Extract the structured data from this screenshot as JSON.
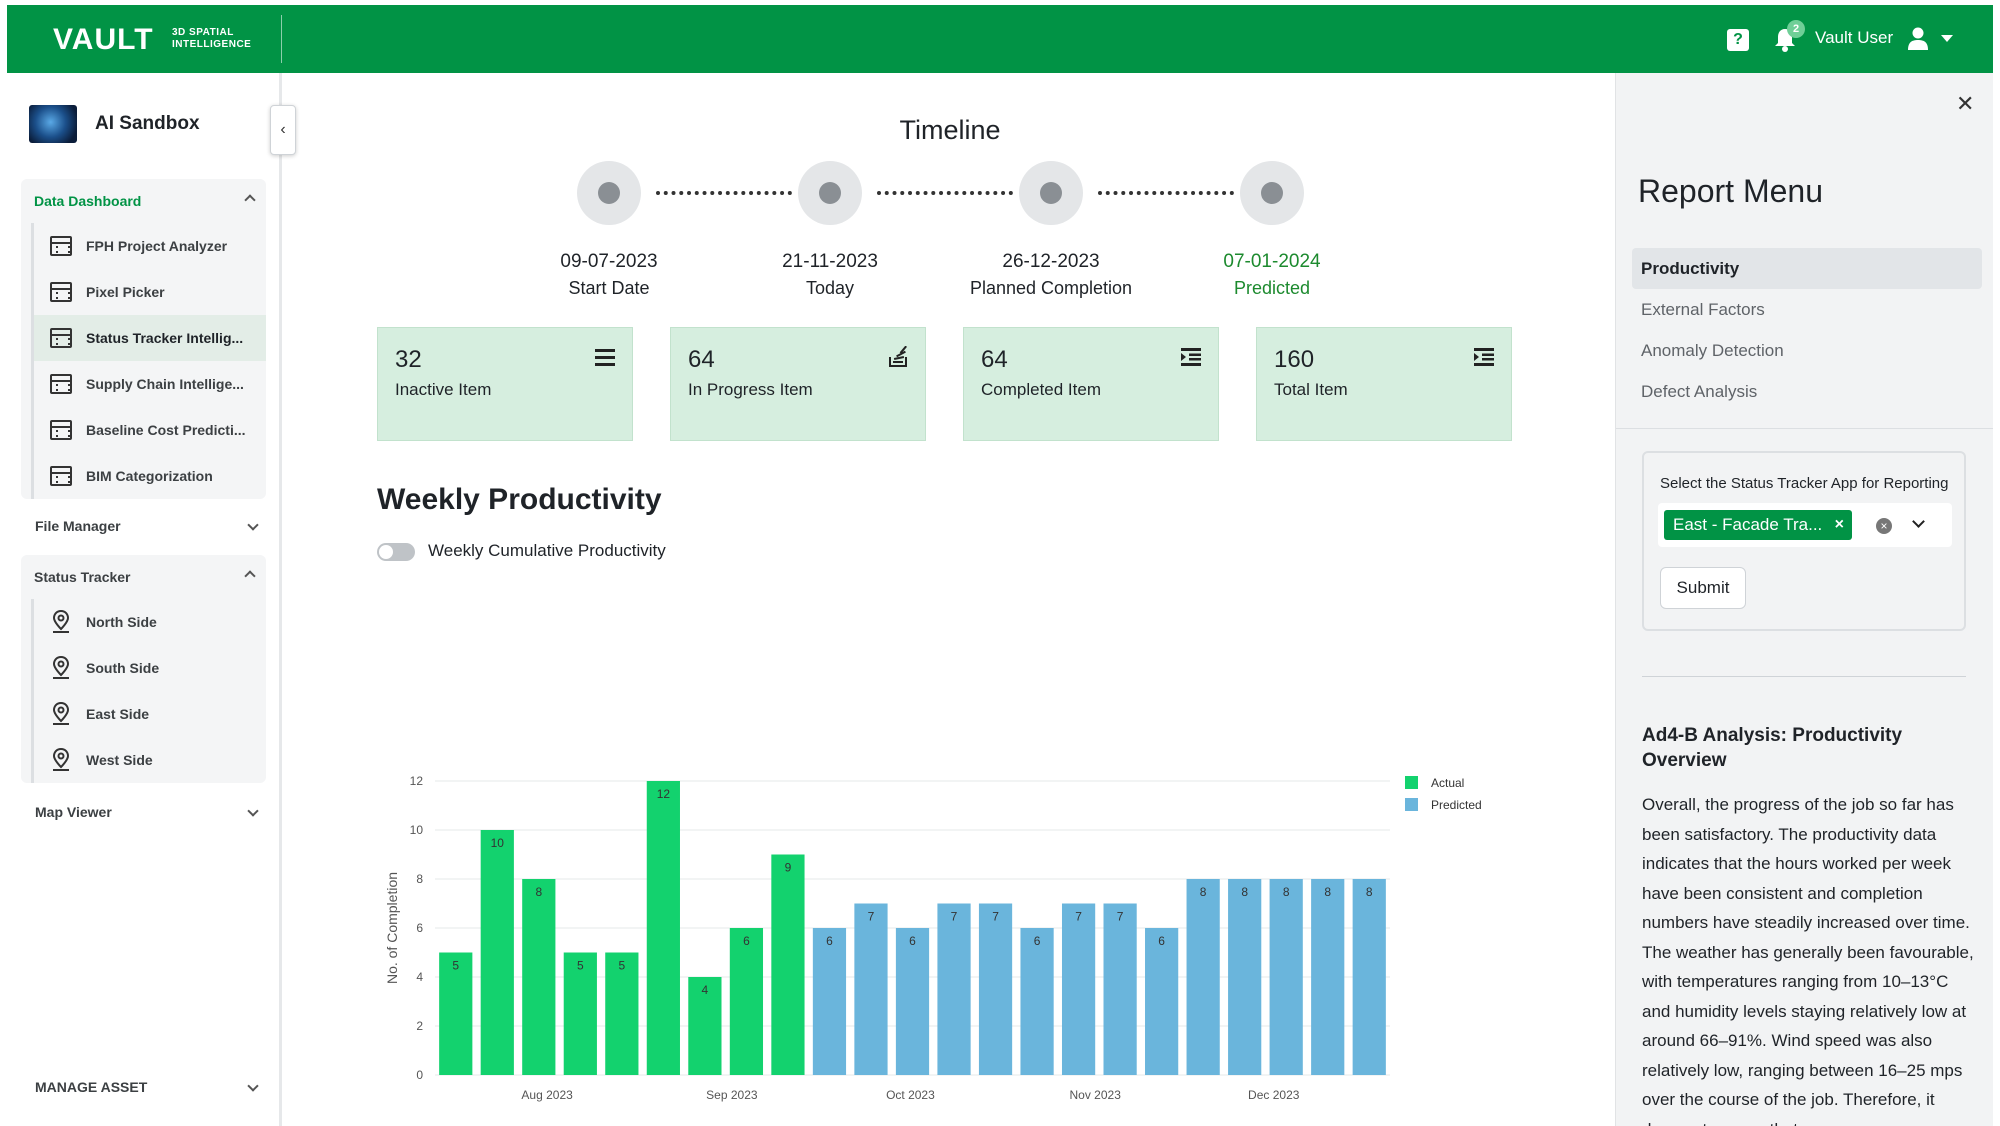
{
  "header": {
    "logo": "VAULT",
    "logo_sub_1": "3D SPATIAL",
    "logo_sub_2": "INTELLIGENCE",
    "notifications": "2",
    "user_name": "Vault User"
  },
  "sidebar": {
    "app_name": "AI Sandbox",
    "data_dashboard": {
      "label": "Data Dashboard",
      "items": [
        {
          "label": "FPH Project Analyzer"
        },
        {
          "label": "Pixel Picker"
        },
        {
          "label": "Status Tracker Intellig..."
        },
        {
          "label": "Supply Chain Intellige..."
        },
        {
          "label": "Baseline Cost Predicti..."
        },
        {
          "label": "BIM Categorization"
        }
      ]
    },
    "file_manager": "File Manager",
    "status_tracker": {
      "label": "Status Tracker",
      "items": [
        {
          "label": "North Side"
        },
        {
          "label": "South Side"
        },
        {
          "label": "East Side"
        },
        {
          "label": "West Side"
        }
      ]
    },
    "map_viewer": "Map Viewer",
    "manage_asset": "MANAGE ASSET"
  },
  "timeline": {
    "title": "Timeline",
    "milestones": [
      {
        "date": "09-07-2023",
        "label": "Start Date"
      },
      {
        "date": "21-11-2023",
        "label": "Today"
      },
      {
        "date": "26-12-2023",
        "label": "Planned Completion"
      },
      {
        "date": "07-01-2024",
        "label": "Predicted"
      }
    ]
  },
  "cards": [
    {
      "value": "32",
      "label": "Inactive Item"
    },
    {
      "value": "64",
      "label": "In Progress Item"
    },
    {
      "value": "64",
      "label": "Completed Item"
    },
    {
      "value": "160",
      "label": "Total Item"
    }
  ],
  "weekly": {
    "title": "Weekly Productivity",
    "toggle_label": "Weekly Cumulative Productivity"
  },
  "colors": {
    "brand": "#019345",
    "actual": "#13d26e",
    "predicted": "#6ab5dc"
  },
  "chart_data": {
    "type": "bar",
    "ylabel": "No. of Completion",
    "ylim": [
      0,
      12
    ],
    "yticks": [
      0,
      2,
      4,
      6,
      8,
      10,
      12
    ],
    "x_tick_labels": [
      "Aug 2023",
      "Sep 2023",
      "Oct 2023",
      "Nov 2023",
      "Dec 2023"
    ],
    "series": [
      {
        "name": "Actual",
        "values": [
          5,
          10,
          8,
          5,
          5,
          12,
          4,
          6,
          9
        ]
      },
      {
        "name": "Predicted",
        "values": [
          6,
          7,
          6,
          7,
          7,
          6,
          7,
          7,
          6,
          8,
          8,
          8,
          8,
          8
        ]
      }
    ],
    "legend": "top-right"
  },
  "report_panel": {
    "title": "Report Menu",
    "menu": [
      {
        "label": "Productivity"
      },
      {
        "label": "External Factors"
      },
      {
        "label": "Anomaly Detection"
      },
      {
        "label": "Defect Analysis"
      }
    ],
    "form_label": "Select the Status Tracker App for Reporting",
    "selected_value": "East - Facade Tra...",
    "submit_label": "Submit",
    "analysis_title": "Ad4-B Analysis: Productivity Overview",
    "analysis_text": "Overall, the progress of the job so far has been satisfactory. The productivity data indicates that the hours worked per week have been consistent and completion numbers have steadily increased over time. The weather has generally been favourable, with temperatures ranging from 10–13°C and humidity levels staying relatively low at around 66–91%. Wind speed was also relatively low, ranging between 16–25 mps over the course of the job. Therefore, it does not appear that"
  }
}
